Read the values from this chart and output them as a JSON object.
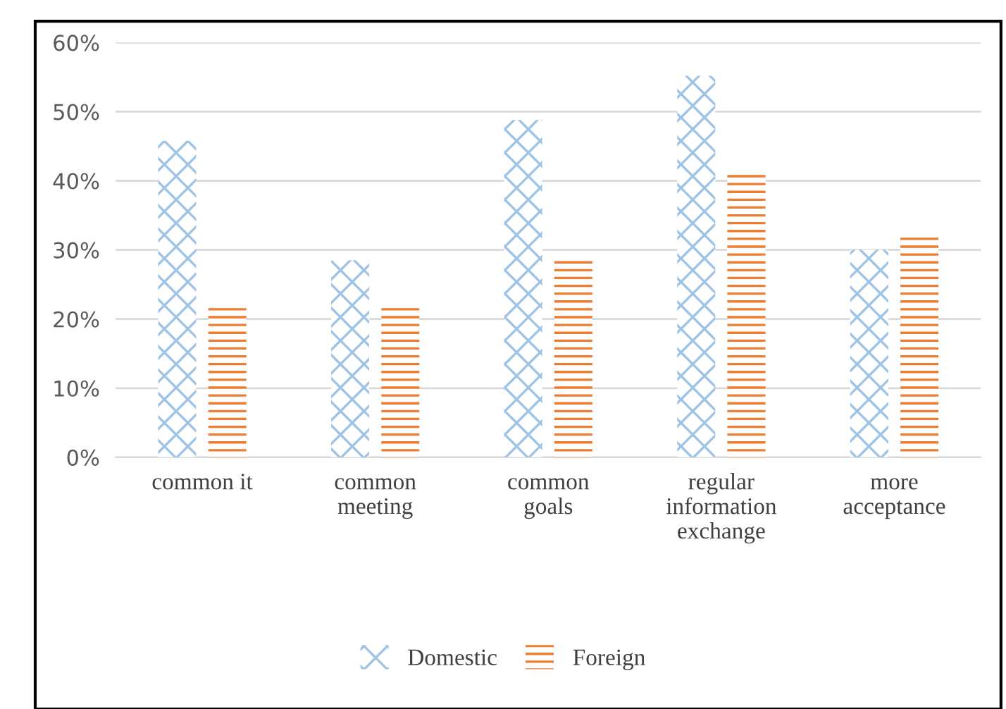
{
  "chart_data": {
    "type": "bar",
    "categories": [
      "common it",
      "common\nmeeting",
      "common\ngoals",
      "regular\ninformation\nexchange",
      "more\nacceptance"
    ],
    "series": [
      {
        "name": "Domestic",
        "color": "#9dc3e6",
        "values": [
          45.8,
          28.5,
          48.8,
          55.2,
          30
        ]
      },
      {
        "name": "Foreign",
        "color": "#ed7d31",
        "values": [
          22.2,
          22.2,
          28.5,
          41.3,
          32.3
        ]
      }
    ],
    "ylim": [
      0,
      60
    ],
    "yticks": [
      {
        "value": 0,
        "label": "0%"
      },
      {
        "value": 10,
        "label": "10%"
      },
      {
        "value": 20,
        "label": "20%"
      },
      {
        "value": 30,
        "label": "30%"
      },
      {
        "value": 40,
        "label": "40%"
      },
      {
        "value": 50,
        "label": "50%"
      },
      {
        "value": 60,
        "label": "60%"
      }
    ],
    "grid": "y",
    "legend": "bottom"
  }
}
